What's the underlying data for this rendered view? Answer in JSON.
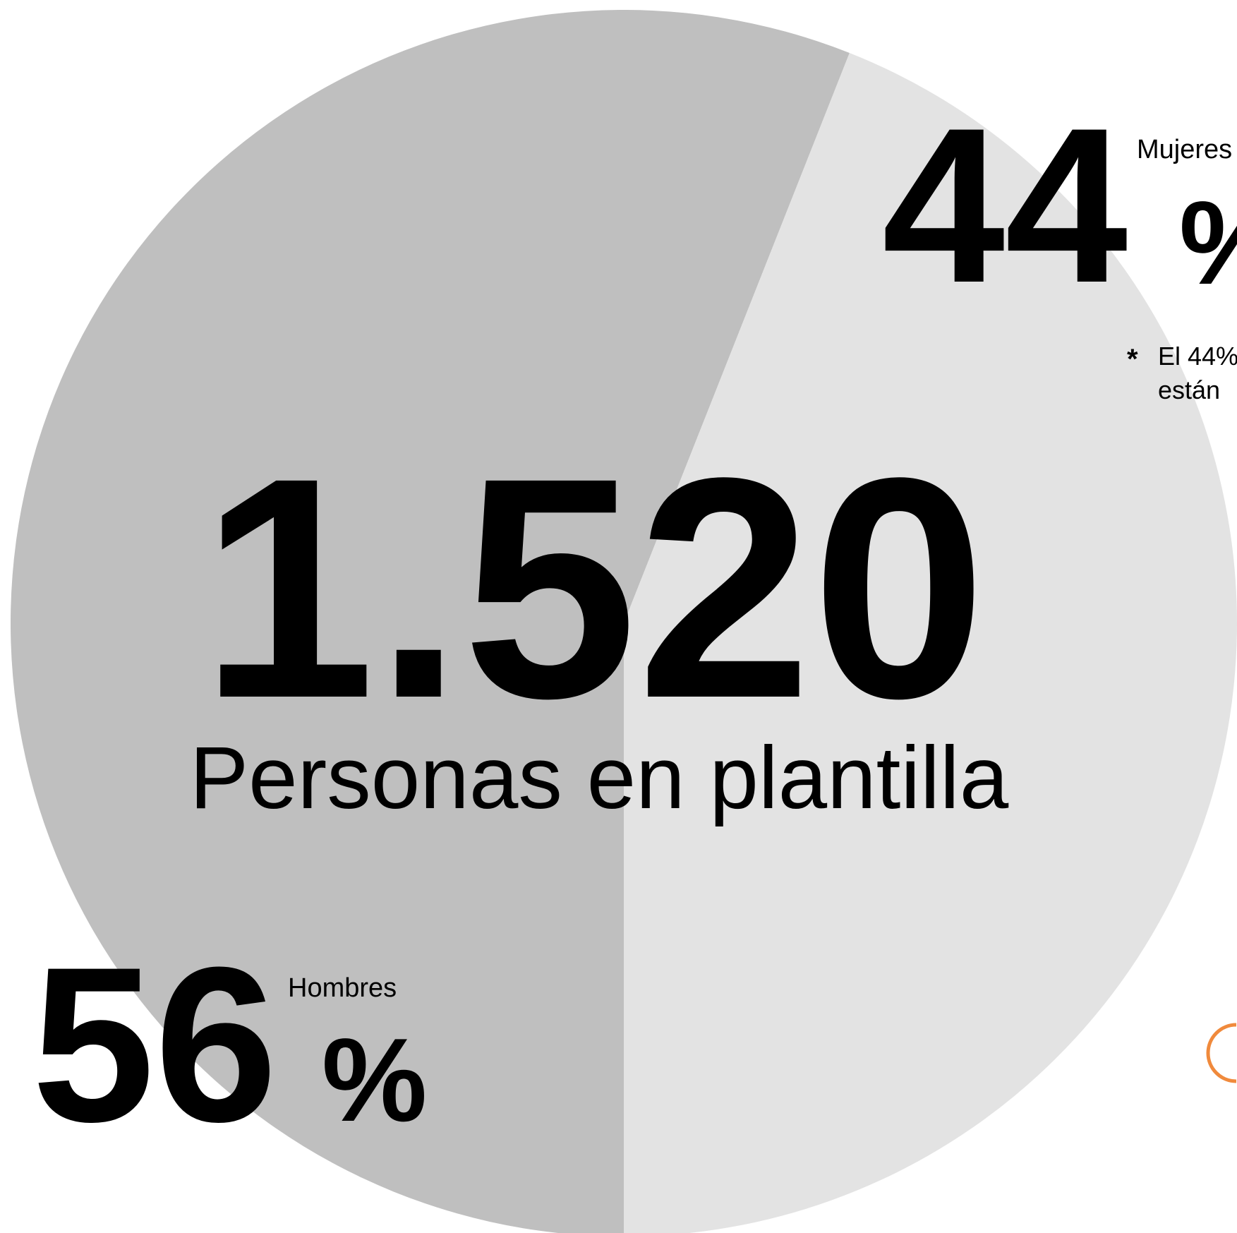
{
  "chart_data": {
    "type": "pie",
    "categories": [
      "Hombres",
      "Mujeres"
    ],
    "values": [
      56,
      44
    ],
    "colors": [
      "#bfbfbf",
      "#e3e3e3"
    ],
    "unit": "%",
    "total": {
      "value": 1520,
      "label": "1.520"
    },
    "total_label": "Personas en plantilla",
    "note": {
      "marker": "*",
      "lines": [
        "El 44%",
        "están"
      ]
    }
  }
}
